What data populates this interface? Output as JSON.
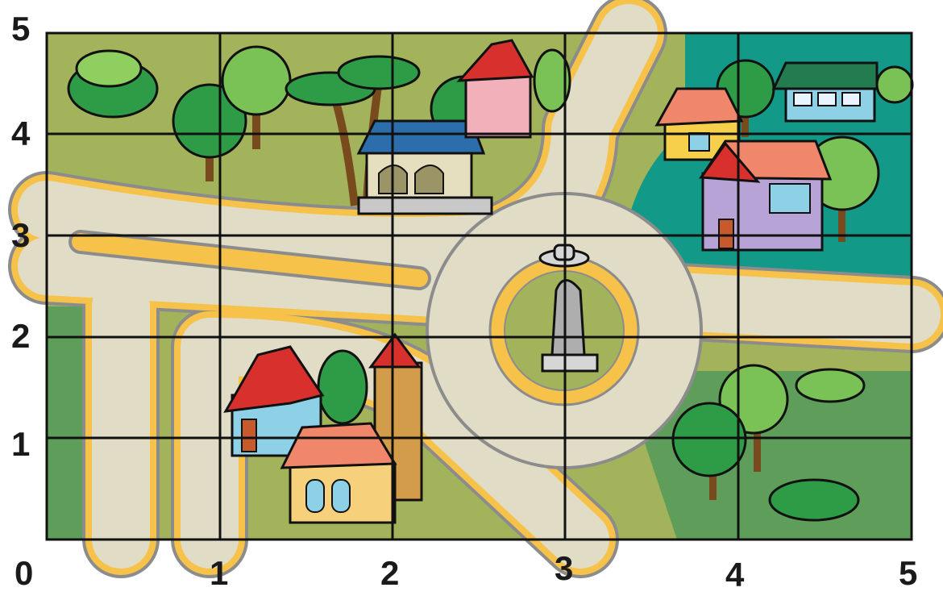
{
  "map": {
    "x_ticks": [
      "0",
      "1",
      "2",
      "3",
      "4",
      "5"
    ],
    "y_ticks": [
      "1",
      "2",
      "3",
      "4",
      "5"
    ],
    "grid_columns": 5,
    "grid_rows": 5
  },
  "colors": {
    "grass": "#a3b35c",
    "dark_grass": "#5f9e5a",
    "teal": "#129987",
    "road": "#e0dcc6",
    "road_edge": "#8c8c8c",
    "road_line": "#f6c24a",
    "grid": "#111111"
  },
  "landmarks": [
    "statue",
    "gazebo",
    "church",
    "blue-house",
    "pink-house",
    "yellow-house",
    "green-roof-house",
    "purple-house"
  ]
}
